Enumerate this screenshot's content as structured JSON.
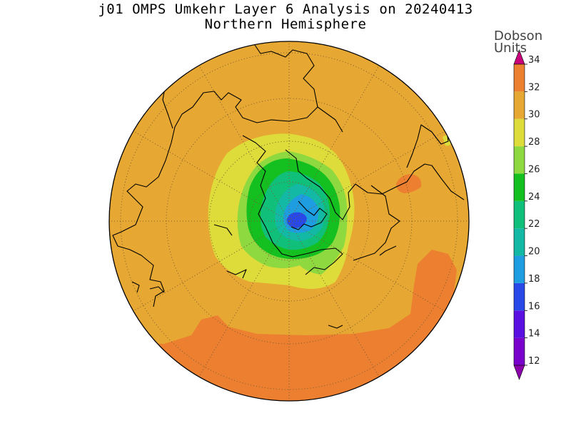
{
  "title": {
    "line1": "j01 OMPS Umkehr Layer 6 Analysis on 20240413",
    "line2": "Northern Hemisphere"
  },
  "colorbar": {
    "title_line1": "Dobson",
    "title_line2": "Units",
    "levels": [
      {
        "value": 12,
        "color": "#7a00cc"
      },
      {
        "value": 14,
        "color": "#5a10e0"
      },
      {
        "value": 16,
        "color": "#2848e8"
      },
      {
        "value": 18,
        "color": "#1e9ee0"
      },
      {
        "value": 20,
        "color": "#13b9a4"
      },
      {
        "value": 22,
        "color": "#10c07a"
      },
      {
        "value": 24,
        "color": "#13c020"
      },
      {
        "value": 26,
        "color": "#8ed840"
      },
      {
        "value": 28,
        "color": "#dedc3a"
      },
      {
        "value": 30,
        "color": "#e6a832"
      },
      {
        "value": 32,
        "color": "#ec8030"
      },
      {
        "value": 34,
        "color": "#e80000"
      }
    ],
    "under_color": "#8a00aa",
    "over_color": "#c8007a"
  },
  "map": {
    "projection": "north polar stereographic",
    "background_color": "#e6a832",
    "contour_regions": [
      {
        "level": 32,
        "color": "#ec8030"
      },
      {
        "level": 28,
        "color": "#dedc3a"
      },
      {
        "level": 26,
        "color": "#8ed840"
      },
      {
        "level": 24,
        "color": "#13c020"
      },
      {
        "level": 22,
        "color": "#10c07a"
      },
      {
        "level": 20,
        "color": "#13b9a4"
      },
      {
        "level": 18,
        "color": "#1e9ee0"
      },
      {
        "level": 16,
        "color": "#2848e8"
      }
    ],
    "graticule": "dotted"
  }
}
